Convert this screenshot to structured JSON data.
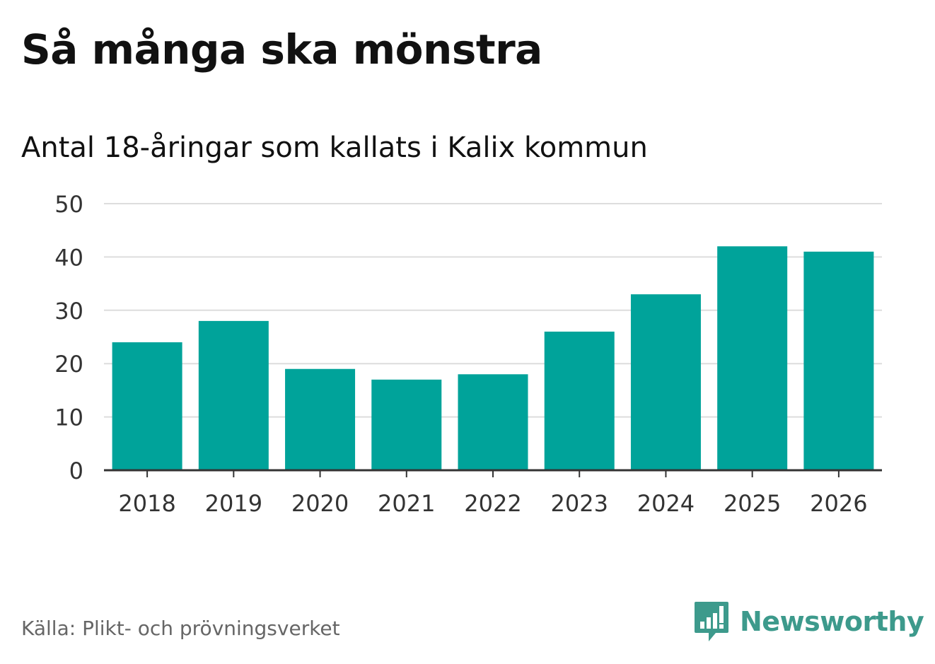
{
  "header": {
    "title": "Så många ska mönstra",
    "subtitle": "Antal 18-åringar som kallats i Kalix kommun"
  },
  "footer": {
    "source": "Källa: Plikt- och prövningsverket",
    "brand": "Newsworthy",
    "brand_color": "#3d9a8c",
    "brand_icon": "newsworthy-logo-icon"
  },
  "chart_data": {
    "type": "bar",
    "categories": [
      "2018",
      "2019",
      "2020",
      "2021",
      "2022",
      "2023",
      "2024",
      "2025",
      "2026"
    ],
    "values": [
      24,
      28,
      19,
      17,
      18,
      26,
      33,
      42,
      41
    ],
    "ylim": [
      0,
      50
    ],
    "yticks": [
      0,
      10,
      20,
      30,
      40,
      50
    ],
    "grid": true,
    "bar_color": "#00a39a"
  }
}
